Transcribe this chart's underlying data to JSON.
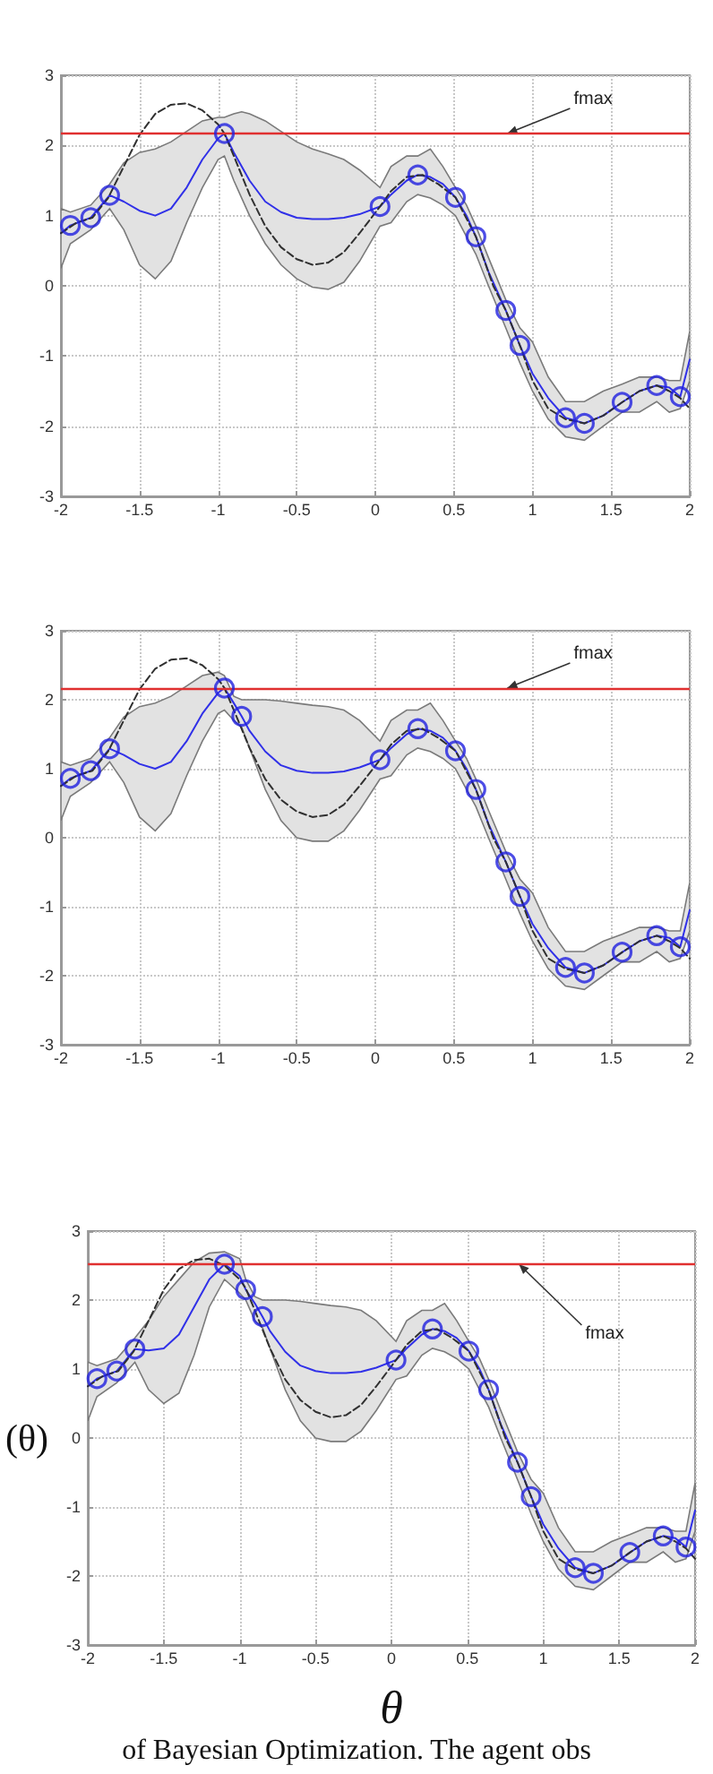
{
  "chart_data": [
    {
      "type": "line",
      "xlim": [
        -2,
        2
      ],
      "xticks": [
        -2,
        -1.5,
        -1,
        -0.5,
        0,
        0.5,
        1,
        1.5,
        2
      ],
      "ylim": [
        -3,
        3
      ],
      "yticks": [
        -3,
        -2,
        -1,
        0,
        1,
        2,
        3
      ],
      "grid": true,
      "ref_lines": [
        {
          "axis": "y",
          "value": 2.17,
          "color": "#e03030",
          "label": "fmax"
        }
      ],
      "series": [
        {
          "type": "line",
          "color": "#3030e8",
          "marker": "none",
          "x": [
            -2,
            -1.94,
            -1.81,
            -1.69,
            -1.6,
            -1.5,
            -1.4,
            -1.3,
            -1.2,
            -1.1,
            -1.0,
            -0.96,
            -0.9,
            -0.85,
            -0.8,
            -0.7,
            -0.6,
            -0.5,
            -0.4,
            -0.3,
            -0.2,
            -0.1,
            0.03,
            0.1,
            0.2,
            0.27,
            0.35,
            0.43,
            0.51,
            0.58,
            0.64,
            0.72,
            0.83,
            0.92,
            1.0,
            1.1,
            1.21,
            1.33,
            1.45,
            1.57,
            1.68,
            1.79,
            1.87,
            1.94,
            2.0
          ],
          "values": [
            0.75,
            0.86,
            0.97,
            1.29,
            1.2,
            1.07,
            1.0,
            1.1,
            1.4,
            1.8,
            2.1,
            2.17,
            1.9,
            1.7,
            1.5,
            1.2,
            1.05,
            0.97,
            0.95,
            0.95,
            0.97,
            1.02,
            1.13,
            1.3,
            1.5,
            1.58,
            1.55,
            1.45,
            1.26,
            1.0,
            0.7,
            0.2,
            -0.35,
            -0.85,
            -1.25,
            -1.6,
            -1.88,
            -1.96,
            -1.85,
            -1.66,
            -1.5,
            -1.42,
            -1.45,
            -1.58,
            -1.05
          ],
          "upper": [
            1.1,
            1.05,
            1.15,
            1.45,
            1.75,
            1.9,
            1.95,
            2.05,
            2.2,
            2.35,
            2.4,
            2.4,
            2.45,
            2.48,
            2.45,
            2.35,
            2.2,
            2.05,
            1.95,
            1.88,
            1.8,
            1.65,
            1.4,
            1.7,
            1.85,
            1.85,
            1.95,
            1.7,
            1.4,
            1.15,
            0.85,
            0.4,
            -0.2,
            -0.6,
            -0.8,
            -1.3,
            -1.65,
            -1.65,
            -1.5,
            -1.4,
            -1.3,
            -1.3,
            -1.35,
            -1.35,
            -0.65
          ],
          "lower": [
            0.25,
            0.6,
            0.8,
            1.1,
            0.8,
            0.3,
            0.1,
            0.35,
            0.9,
            1.4,
            1.8,
            1.85,
            1.5,
            1.25,
            1.0,
            0.6,
            0.3,
            0.1,
            -0.02,
            -0.05,
            0.05,
            0.35,
            0.85,
            0.9,
            1.2,
            1.3,
            1.25,
            1.15,
            1.0,
            0.7,
            0.45,
            0.0,
            -0.6,
            -1.1,
            -1.5,
            -1.9,
            -2.15,
            -2.2,
            -2.0,
            -1.8,
            -1.8,
            -1.65,
            -1.8,
            -1.75,
            -1.35
          ]
        },
        {
          "type": "line",
          "color": "#303030",
          "marker": "none",
          "line_style": "dashed",
          "x": [
            -2,
            -1.9,
            -1.8,
            -1.7,
            -1.6,
            -1.5,
            -1.4,
            -1.3,
            -1.2,
            -1.1,
            -1.0,
            -0.96,
            -0.9,
            -0.8,
            -0.7,
            -0.6,
            -0.5,
            -0.4,
            -0.3,
            -0.2,
            -0.1,
            0.03,
            0.1,
            0.2,
            0.3,
            0.4,
            0.51,
            0.64,
            0.75,
            0.83,
            0.92,
            1.0,
            1.1,
            1.21,
            1.33,
            1.45,
            1.57,
            1.68,
            1.79,
            1.87,
            1.94,
            2.0
          ],
          "values": [
            0.75,
            0.9,
            0.97,
            1.25,
            1.7,
            2.15,
            2.45,
            2.58,
            2.6,
            2.5,
            2.3,
            2.17,
            1.85,
            1.3,
            0.85,
            0.55,
            0.38,
            0.3,
            0.33,
            0.48,
            0.75,
            1.13,
            1.35,
            1.55,
            1.58,
            1.45,
            1.26,
            0.7,
            0.0,
            -0.35,
            -0.85,
            -1.35,
            -1.75,
            -1.9,
            -1.96,
            -1.85,
            -1.66,
            -1.5,
            -1.42,
            -1.5,
            -1.6,
            -1.75
          ]
        },
        {
          "type": "scatter",
          "color": "#2020e0",
          "marker": "circle",
          "x": [
            -1.94,
            -1.81,
            -1.69,
            -0.96,
            0.03,
            0.27,
            0.51,
            0.64,
            0.83,
            0.92,
            1.21,
            1.33,
            1.57,
            1.79,
            1.94
          ],
          "values": [
            0.86,
            0.97,
            1.29,
            2.17,
            1.13,
            1.58,
            1.26,
            0.7,
            -0.35,
            -0.85,
            -1.88,
            -1.96,
            -1.66,
            -1.42,
            -1.58
          ]
        }
      ]
    },
    {
      "type": "line",
      "xlim": [
        -2,
        2
      ],
      "xticks": [
        -2,
        -1.5,
        -1,
        -0.5,
        0,
        0.5,
        1,
        1.5,
        2
      ],
      "ylim": [
        -3,
        3
      ],
      "yticks": [
        -3,
        -2,
        -1,
        0,
        1,
        2,
        3
      ],
      "grid": true,
      "ref_lines": [
        {
          "axis": "y",
          "value": 2.17,
          "color": "#e03030",
          "label": "fmax"
        }
      ],
      "series": [
        {
          "type": "line",
          "color": "#3030e8",
          "marker": "none",
          "x": [
            -2,
            -1.94,
            -1.81,
            -1.69,
            -1.6,
            -1.5,
            -1.4,
            -1.3,
            -1.2,
            -1.1,
            -1.0,
            -0.96,
            -0.9,
            -0.85,
            -0.8,
            -0.7,
            -0.6,
            -0.5,
            -0.4,
            -0.3,
            -0.2,
            -0.1,
            0.03,
            0.1,
            0.2,
            0.27,
            0.35,
            0.43,
            0.51,
            0.58,
            0.64,
            0.72,
            0.83,
            0.92,
            1.0,
            1.1,
            1.21,
            1.33,
            1.45,
            1.57,
            1.68,
            1.79,
            1.87,
            1.94,
            2.0
          ],
          "values": [
            0.75,
            0.86,
            0.97,
            1.29,
            1.2,
            1.07,
            1.0,
            1.1,
            1.4,
            1.8,
            2.1,
            2.17,
            1.95,
            1.76,
            1.55,
            1.25,
            1.05,
            0.97,
            0.94,
            0.94,
            0.96,
            1.02,
            1.13,
            1.3,
            1.5,
            1.58,
            1.55,
            1.45,
            1.26,
            1.0,
            0.7,
            0.2,
            -0.35,
            -0.85,
            -1.25,
            -1.6,
            -1.88,
            -1.96,
            -1.85,
            -1.66,
            -1.5,
            -1.42,
            -1.45,
            -1.58,
            -1.05
          ],
          "upper": [
            1.1,
            1.05,
            1.15,
            1.45,
            1.75,
            1.9,
            1.95,
            2.05,
            2.2,
            2.35,
            2.4,
            2.35,
            2.05,
            2.0,
            2.0,
            2.0,
            1.98,
            1.95,
            1.92,
            1.9,
            1.85,
            1.7,
            1.4,
            1.7,
            1.85,
            1.85,
            1.95,
            1.7,
            1.4,
            1.15,
            0.85,
            0.4,
            -0.2,
            -0.6,
            -0.8,
            -1.3,
            -1.65,
            -1.65,
            -1.5,
            -1.4,
            -1.3,
            -1.3,
            -1.35,
            -1.35,
            -0.65
          ],
          "lower": [
            0.25,
            0.6,
            0.8,
            1.1,
            0.8,
            0.3,
            0.1,
            0.35,
            0.9,
            1.4,
            1.8,
            1.85,
            1.7,
            1.6,
            1.3,
            0.7,
            0.25,
            0.0,
            -0.05,
            -0.05,
            0.1,
            0.4,
            0.85,
            0.9,
            1.2,
            1.3,
            1.25,
            1.15,
            1.0,
            0.7,
            0.45,
            0.0,
            -0.6,
            -1.1,
            -1.5,
            -1.9,
            -2.15,
            -2.2,
            -2.0,
            -1.8,
            -1.8,
            -1.65,
            -1.8,
            -1.75,
            -1.35
          ]
        },
        {
          "type": "line",
          "color": "#303030",
          "marker": "none",
          "line_style": "dashed",
          "x": [
            -2,
            -1.9,
            -1.8,
            -1.7,
            -1.6,
            -1.5,
            -1.4,
            -1.3,
            -1.2,
            -1.1,
            -1.0,
            -0.96,
            -0.9,
            -0.8,
            -0.7,
            -0.6,
            -0.5,
            -0.4,
            -0.3,
            -0.2,
            -0.1,
            0.03,
            0.1,
            0.2,
            0.3,
            0.4,
            0.51,
            0.64,
            0.75,
            0.83,
            0.92,
            1.0,
            1.1,
            1.21,
            1.33,
            1.45,
            1.57,
            1.68,
            1.79,
            1.87,
            1.94,
            2.0
          ],
          "values": [
            0.75,
            0.9,
            0.97,
            1.25,
            1.7,
            2.15,
            2.45,
            2.58,
            2.6,
            2.5,
            2.3,
            2.17,
            1.85,
            1.3,
            0.85,
            0.55,
            0.38,
            0.3,
            0.33,
            0.48,
            0.75,
            1.13,
            1.35,
            1.55,
            1.58,
            1.45,
            1.26,
            0.7,
            0.0,
            -0.35,
            -0.85,
            -1.35,
            -1.75,
            -1.9,
            -1.96,
            -1.85,
            -1.66,
            -1.5,
            -1.42,
            -1.5,
            -1.6,
            -1.75
          ]
        },
        {
          "type": "scatter",
          "color": "#2020e0",
          "marker": "circle",
          "x": [
            -1.94,
            -1.81,
            -1.69,
            -0.96,
            -0.85,
            0.03,
            0.27,
            0.51,
            0.64,
            0.83,
            0.92,
            1.21,
            1.33,
            1.57,
            1.79,
            1.94
          ],
          "values": [
            0.86,
            0.97,
            1.29,
            2.17,
            1.76,
            1.13,
            1.58,
            1.26,
            0.7,
            -0.35,
            -0.85,
            -1.88,
            -1.96,
            -1.66,
            -1.42,
            -1.58
          ]
        }
      ]
    },
    {
      "type": "line",
      "xlim": [
        -2,
        2
      ],
      "xticks": [
        -2,
        -1.5,
        -1,
        -0.5,
        0,
        0.5,
        1,
        1.5,
        2
      ],
      "ylim": [
        -3,
        3
      ],
      "yticks": [
        -3,
        -2,
        -1,
        0,
        1,
        2,
        3
      ],
      "grid": true,
      "xlabel": "θ",
      "ylabel": "(θ)",
      "ref_lines": [
        {
          "axis": "y",
          "value": 2.52,
          "color": "#e03030",
          "label": "fmax"
        }
      ],
      "annotations": [
        "of Bayesian Optimization. The agent obs"
      ],
      "series": [
        {
          "type": "line",
          "color": "#3030e8",
          "marker": "none",
          "x": [
            -2,
            -1.94,
            -1.81,
            -1.69,
            -1.6,
            -1.5,
            -1.4,
            -1.3,
            -1.2,
            -1.1,
            -1.0,
            -0.96,
            -0.9,
            -0.85,
            -0.8,
            -0.7,
            -0.6,
            -0.5,
            -0.4,
            -0.3,
            -0.2,
            -0.1,
            0.03,
            0.1,
            0.2,
            0.27,
            0.35,
            0.43,
            0.51,
            0.58,
            0.64,
            0.72,
            0.83,
            0.92,
            1.0,
            1.1,
            1.21,
            1.33,
            1.45,
            1.57,
            1.68,
            1.79,
            1.87,
            1.94,
            2.0
          ],
          "values": [
            0.75,
            0.86,
            0.97,
            1.29,
            1.27,
            1.3,
            1.5,
            1.9,
            2.3,
            2.52,
            2.35,
            2.15,
            1.95,
            1.76,
            1.55,
            1.25,
            1.05,
            0.97,
            0.94,
            0.94,
            0.96,
            1.02,
            1.13,
            1.3,
            1.5,
            1.58,
            1.55,
            1.45,
            1.26,
            1.0,
            0.7,
            0.2,
            -0.35,
            -0.85,
            -1.25,
            -1.6,
            -1.88,
            -1.96,
            -1.85,
            -1.66,
            -1.5,
            -1.42,
            -1.45,
            -1.58,
            -1.05
          ],
          "upper": [
            1.1,
            1.05,
            1.15,
            1.45,
            1.7,
            2.05,
            2.3,
            2.55,
            2.68,
            2.7,
            2.6,
            2.3,
            2.05,
            2.0,
            2.0,
            2.0,
            1.98,
            1.95,
            1.92,
            1.9,
            1.85,
            1.7,
            1.4,
            1.7,
            1.85,
            1.85,
            1.95,
            1.7,
            1.4,
            1.15,
            0.85,
            0.4,
            -0.2,
            -0.6,
            -0.8,
            -1.3,
            -1.65,
            -1.65,
            -1.5,
            -1.4,
            -1.3,
            -1.3,
            -1.35,
            -1.35,
            -0.65
          ],
          "lower": [
            0.25,
            0.6,
            0.8,
            1.1,
            0.7,
            0.5,
            0.65,
            1.2,
            1.9,
            2.3,
            2.1,
            2.0,
            1.7,
            1.6,
            1.3,
            0.7,
            0.25,
            0.0,
            -0.05,
            -0.05,
            0.1,
            0.4,
            0.85,
            0.9,
            1.2,
            1.3,
            1.25,
            1.15,
            1.0,
            0.7,
            0.45,
            0.0,
            -0.6,
            -1.1,
            -1.5,
            -1.9,
            -2.15,
            -2.2,
            -2.0,
            -1.8,
            -1.8,
            -1.65,
            -1.8,
            -1.75,
            -1.35
          ]
        },
        {
          "type": "line",
          "color": "#303030",
          "marker": "none",
          "line_style": "dashed",
          "x": [
            -2,
            -1.9,
            -1.8,
            -1.7,
            -1.6,
            -1.5,
            -1.4,
            -1.3,
            -1.2,
            -1.1,
            -1.0,
            -0.96,
            -0.9,
            -0.8,
            -0.7,
            -0.6,
            -0.5,
            -0.4,
            -0.3,
            -0.2,
            -0.1,
            0.03,
            0.1,
            0.2,
            0.3,
            0.4,
            0.51,
            0.64,
            0.75,
            0.83,
            0.92,
            1.0,
            1.1,
            1.21,
            1.33,
            1.45,
            1.57,
            1.68,
            1.79,
            1.87,
            1.94,
            2.0
          ],
          "values": [
            0.75,
            0.9,
            0.97,
            1.25,
            1.7,
            2.15,
            2.45,
            2.58,
            2.6,
            2.5,
            2.3,
            2.17,
            1.85,
            1.3,
            0.85,
            0.55,
            0.38,
            0.3,
            0.33,
            0.48,
            0.75,
            1.13,
            1.35,
            1.55,
            1.58,
            1.45,
            1.26,
            0.7,
            0.0,
            -0.35,
            -0.85,
            -1.35,
            -1.75,
            -1.9,
            -1.96,
            -1.85,
            -1.66,
            -1.5,
            -1.42,
            -1.5,
            -1.6,
            -1.75
          ]
        },
        {
          "type": "scatter",
          "color": "#2020e0",
          "marker": "circle",
          "x": [
            -1.94,
            -1.81,
            -1.69,
            -1.1,
            -0.96,
            -0.85,
            0.03,
            0.27,
            0.51,
            0.64,
            0.83,
            0.92,
            1.21,
            1.33,
            1.57,
            1.79,
            1.94
          ],
          "values": [
            0.86,
            0.97,
            1.29,
            2.52,
            2.15,
            1.76,
            1.13,
            1.58,
            1.26,
            0.7,
            -0.35,
            -0.85,
            -1.88,
            -1.96,
            -1.66,
            -1.42,
            -1.58
          ]
        }
      ]
    }
  ]
}
